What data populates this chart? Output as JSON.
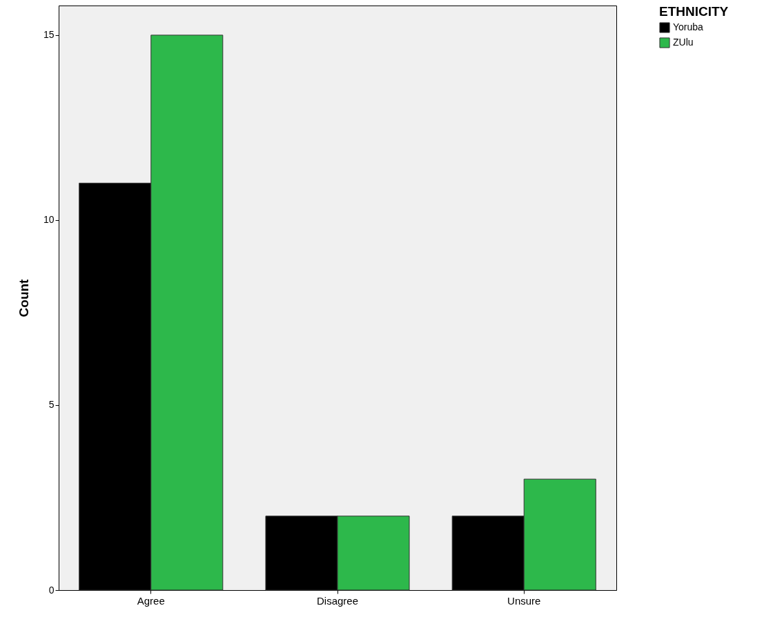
{
  "chart_data": {
    "type": "bar",
    "ylabel": "Count",
    "legend_title": "ETHNICITY",
    "categories": [
      "Agree",
      "Disagree",
      "Unsure"
    ],
    "series": [
      {
        "name": "Yoruba",
        "color": "#000000",
        "values": [
          11,
          2,
          2
        ]
      },
      {
        "name": "ZUlu",
        "color": "#2db84b",
        "values": [
          15,
          2,
          3
        ]
      }
    ],
    "ylim": [
      0,
      15.8
    ],
    "yticks": [
      0,
      5,
      10,
      15
    ],
    "grid": false,
    "legend": "top right"
  }
}
